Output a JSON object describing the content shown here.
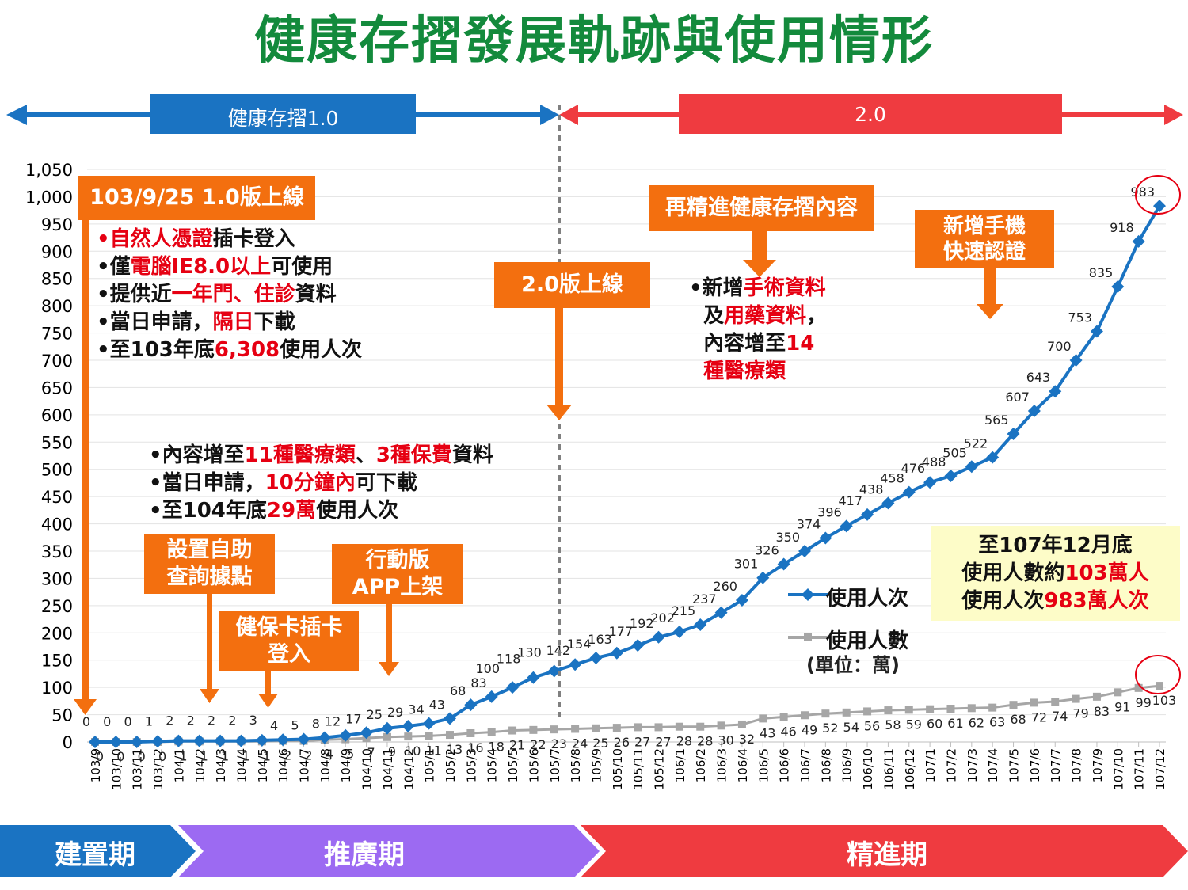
{
  "title": "健康存摺發展軌跡與使用情形",
  "versions": {
    "v1": "健康存摺1.0",
    "v2": "2.0"
  },
  "phases": {
    "build": "建置期",
    "promote": "推廣期",
    "refine": "精進期"
  },
  "callouts": {
    "launch_v1": "103/9/25 1.0版上線",
    "launch_v2": "2.0版上線",
    "kiosk": [
      "設置自助",
      "查詢據點"
    ],
    "card_login": [
      "健保卡插卡",
      "登入"
    ],
    "mobile_app": [
      "行動版",
      "APP上架"
    ],
    "refine_content": "再精進健康存摺內容",
    "mobile_auth": [
      "新增手機",
      "快速認證"
    ]
  },
  "notes": {
    "v1_features": [
      [
        {
          "t": "自然人憑證",
          "red": true
        },
        {
          "t": "插卡登入"
        }
      ],
      [
        {
          "t": "僅"
        },
        {
          "t": "電腦IE8.0以上",
          "red": true
        },
        {
          "t": "可使用"
        }
      ],
      [
        {
          "t": "提供近"
        },
        {
          "t": "一年門、住診",
          "red": true
        },
        {
          "t": "資料"
        }
      ],
      [
        {
          "t": "當日申請，"
        },
        {
          "t": "隔日",
          "red": true
        },
        {
          "t": "下載"
        }
      ],
      [
        {
          "t": "至103年底"
        },
        {
          "t": "6,308",
          "red": true
        },
        {
          "t": "使用人次"
        }
      ]
    ],
    "promo_features": [
      [
        {
          "t": "內容增至"
        },
        {
          "t": "11種醫療類",
          "red": true
        },
        {
          "t": "、"
        },
        {
          "t": "3種保費",
          "red": true
        },
        {
          "t": "資料"
        }
      ],
      [
        {
          "t": "當日申請，"
        },
        {
          "t": "10分鐘內",
          "red": true
        },
        {
          "t": "可下載"
        }
      ],
      [
        {
          "t": "至104年底"
        },
        {
          "t": "29萬",
          "red": true
        },
        {
          "t": "使用人次"
        }
      ]
    ],
    "refine_features": [
      [
        {
          "t": "新增"
        },
        {
          "t": "手術資料",
          "red": true
        }
      ],
      [
        {
          "t": "及"
        },
        {
          "t": "用藥資料",
          "red": true
        },
        {
          "t": "，"
        }
      ],
      [
        {
          "t": "內容增至"
        },
        {
          "t": "14",
          "red": true
        }
      ],
      [
        {
          "t": "種醫療類",
          "red": true
        }
      ]
    ],
    "summary": [
      [
        {
          "t": "至107年12月底"
        }
      ],
      [
        {
          "t": "使用人數約"
        },
        {
          "t": "103萬人",
          "red": true
        }
      ],
      [
        {
          "t": "使用人次"
        },
        {
          "t": "983萬人次",
          "red": true
        }
      ]
    ]
  },
  "legend_unit": "(單位：萬)",
  "colors": {
    "blue": "#1a73c2",
    "gray": "#a6a6a6",
    "orange": "#f36f0f",
    "red": "#ef3b40",
    "purple": "#9c6af2",
    "green": "#138a3c",
    "summary_bg": "#fdfcc8"
  },
  "chart_data": {
    "type": "line",
    "categories": [
      "103/9",
      "103/10",
      "103/11",
      "103/12",
      "104/1",
      "104/2",
      "104/3",
      "104/4",
      "104/5",
      "104/6",
      "104/7",
      "104/8",
      "104/9",
      "104/10",
      "104/11",
      "104/12",
      "105/1",
      "105/2",
      "105/3",
      "105/4",
      "105/5",
      "105/6",
      "105/7",
      "105/8",
      "105/9",
      "105/10",
      "105/11",
      "105/12",
      "106/1",
      "106/2",
      "106/3",
      "106/4",
      "106/5",
      "106/6",
      "106/7",
      "106/8",
      "106/9",
      "106/10",
      "106/11",
      "106/12",
      "107/1",
      "107/2",
      "107/3",
      "107/4",
      "107/5",
      "107/6",
      "107/7",
      "107/8",
      "107/9",
      "107/10",
      "107/11",
      "107/12"
    ],
    "series": [
      {
        "name": "使用人次",
        "values": [
          0,
          0,
          0,
          1,
          2,
          2,
          2,
          2,
          3,
          4,
          5,
          8,
          12,
          17,
          25,
          29,
          34,
          43,
          68,
          83,
          100,
          118,
          130,
          142,
          154,
          163,
          177,
          192,
          202,
          215,
          237,
          260,
          301,
          326,
          350,
          374,
          396,
          417,
          438,
          458,
          476,
          488,
          505,
          522,
          565,
          607,
          643,
          700,
          753,
          835,
          918,
          983
        ]
      },
      {
        "name": "使用人數",
        "values": [
          0,
          0,
          0,
          0,
          1,
          1,
          1,
          1,
          1,
          2,
          2,
          4,
          5,
          7,
          9,
          10,
          11,
          13,
          16,
          18,
          21,
          22,
          23,
          24,
          25,
          26,
          27,
          27,
          28,
          28,
          30,
          32,
          43,
          46,
          49,
          52,
          54,
          56,
          58,
          59,
          60,
          61,
          62,
          63,
          68,
          72,
          74,
          79,
          83,
          91,
          99,
          103
        ]
      }
    ],
    "y_ticks": [
      "0",
      "50",
      "100",
      "150",
      "200",
      "250",
      "300",
      "350",
      "400",
      "450",
      "500",
      "550",
      "600",
      "650",
      "700",
      "750",
      "800",
      "850",
      "900",
      "950",
      "1,000",
      "1,050"
    ],
    "ylim": [
      0,
      1050
    ],
    "grid": true,
    "legend": "right"
  }
}
